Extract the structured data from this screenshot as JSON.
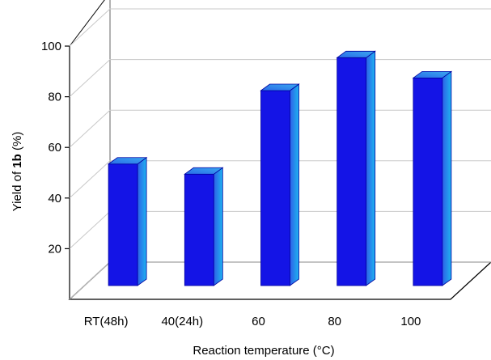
{
  "chart_data": {
    "type": "bar",
    "title": "",
    "categories": [
      "RT(48h)",
      "40(24h)",
      "60",
      "80",
      "100"
    ],
    "values": [
      48,
      44,
      77,
      90,
      82
    ],
    "xlabel": "Reaction temperature (°C)",
    "ylabel_prefix": "Yield of ",
    "ylabel_bold": "1b",
    "ylabel_suffix": " (%)",
    "ylim": [
      0,
      100
    ],
    "yticks": [
      20,
      40,
      60,
      80,
      100
    ],
    "grid": true,
    "style": "3d",
    "colors": {
      "bar": "#1414e6",
      "bar_side": "#1ea0e8",
      "bar_top": "#2a8ae8",
      "grid": "#c8c8c8"
    }
  }
}
